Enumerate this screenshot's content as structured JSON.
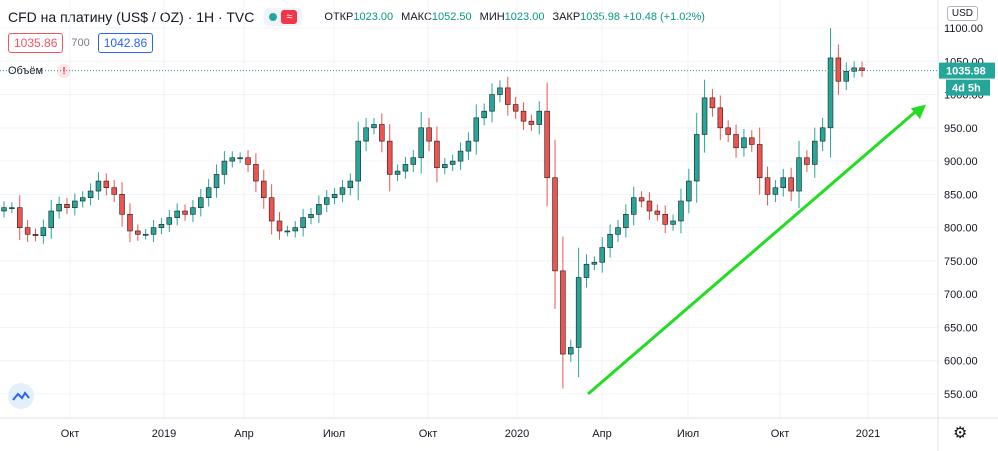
{
  "header": {
    "title": "CFD на платину (US$ / OZ) · 1H · TVC",
    "wave_icon": "≈",
    "ohlc": [
      {
        "label": "ОТКР",
        "value": "1023.00"
      },
      {
        "label": "МАКС",
        "value": "1052.50"
      },
      {
        "label": "МИН",
        "value": "1023.00"
      },
      {
        "label": "ЗАКР",
        "value": "1035.98 +10.48 (+1.02%)"
      }
    ]
  },
  "trade": {
    "sell": "1035.86",
    "spread": "700",
    "buy": "1042.86"
  },
  "volume_label": "Объём",
  "warn_icon": "!",
  "currency": "USD",
  "price_tag": "1035.98",
  "time_tag": "4d 5h",
  "colors": {
    "up": "#26a69a",
    "down": "#ef5350",
    "arrow": "#22dd22",
    "price_line": "#26a69a"
  },
  "chart_data": {
    "type": "candlestick",
    "title": "CFD на платину (US$ / OZ)",
    "ylim": [
      520,
      1110
    ],
    "y_ticks": [
      550,
      600,
      650,
      700,
      750,
      800,
      850,
      900,
      950,
      1000,
      1050,
      1100
    ],
    "y_tick_labels": [
      "550.00",
      "600.00",
      "650.00",
      "700.00",
      "750.00",
      "800.00",
      "850.00",
      "900.00",
      "950.00",
      "1000.00",
      "1050.00",
      "1100.00"
    ],
    "x_tick_labels": [
      "Окт",
      "2019",
      "Апр",
      "Июл",
      "Окт",
      "2020",
      "Апр",
      "Июл",
      "Окт",
      "2021"
    ],
    "grid": true,
    "last_price": 1035.98,
    "closes": [
      830,
      830,
      800,
      790,
      788,
      800,
      825,
      835,
      830,
      840,
      845,
      855,
      870,
      860,
      850,
      820,
      795,
      790,
      790,
      800,
      805,
      815,
      825,
      820,
      830,
      845,
      860,
      880,
      900,
      905,
      905,
      895,
      870,
      845,
      810,
      795,
      795,
      800,
      815,
      820,
      835,
      845,
      850,
      860,
      870,
      930,
      950,
      955,
      930,
      880,
      885,
      895,
      905,
      950,
      930,
      890,
      895,
      900,
      915,
      930,
      965,
      975,
      1000,
      1010,
      985,
      975,
      960,
      955,
      975,
      875,
      735,
      610,
      620,
      725,
      745,
      748,
      770,
      790,
      800,
      820,
      845,
      840,
      825,
      820,
      805,
      810,
      840,
      870,
      940,
      995,
      980,
      950,
      940,
      920,
      935,
      925,
      875,
      850,
      860,
      875,
      855,
      905,
      895,
      930,
      950,
      1055,
      1020,
      1035,
      1040,
      1036
    ],
    "trend_arrow": {
      "from": {
        "x_label": "Апр",
        "price": 550
      },
      "to": {
        "x_label": "2021",
        "price": 985
      }
    }
  }
}
